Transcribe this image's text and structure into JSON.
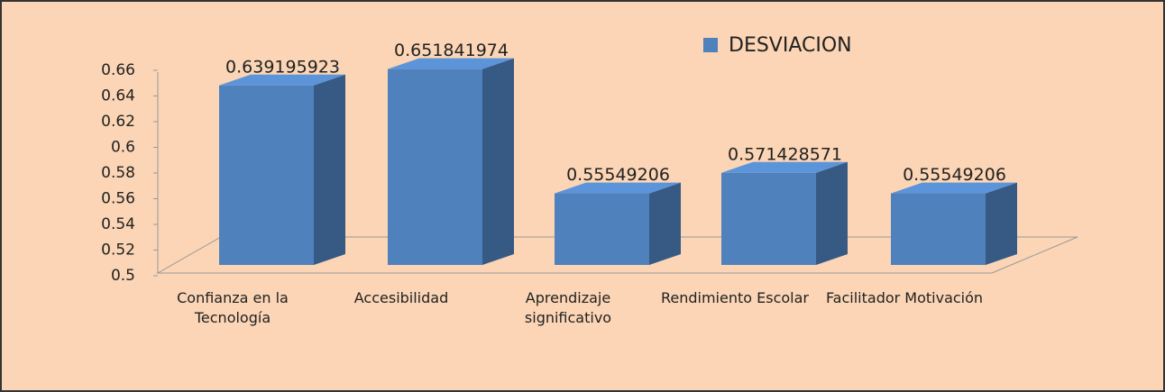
{
  "chart_data": {
    "type": "bar3d",
    "categories": [
      "Confianza en la Tecnología",
      "Accesibilidad",
      "Aprendizaje significativo",
      "Rendimiento Escolar",
      "Facilitador Motivación"
    ],
    "series": [
      {
        "name": "DESVIACION",
        "color": "#4f81bd",
        "values": [
          0.639195923,
          0.651841974,
          0.55549206,
          0.571428571,
          0.55549206
        ]
      }
    ],
    "ylim": [
      0.5,
      0.66
    ],
    "yticks": [
      0.5,
      0.52,
      0.54,
      0.56,
      0.58,
      0.6,
      0.62,
      0.64,
      0.66
    ],
    "grid": false,
    "legend": "top-right"
  }
}
